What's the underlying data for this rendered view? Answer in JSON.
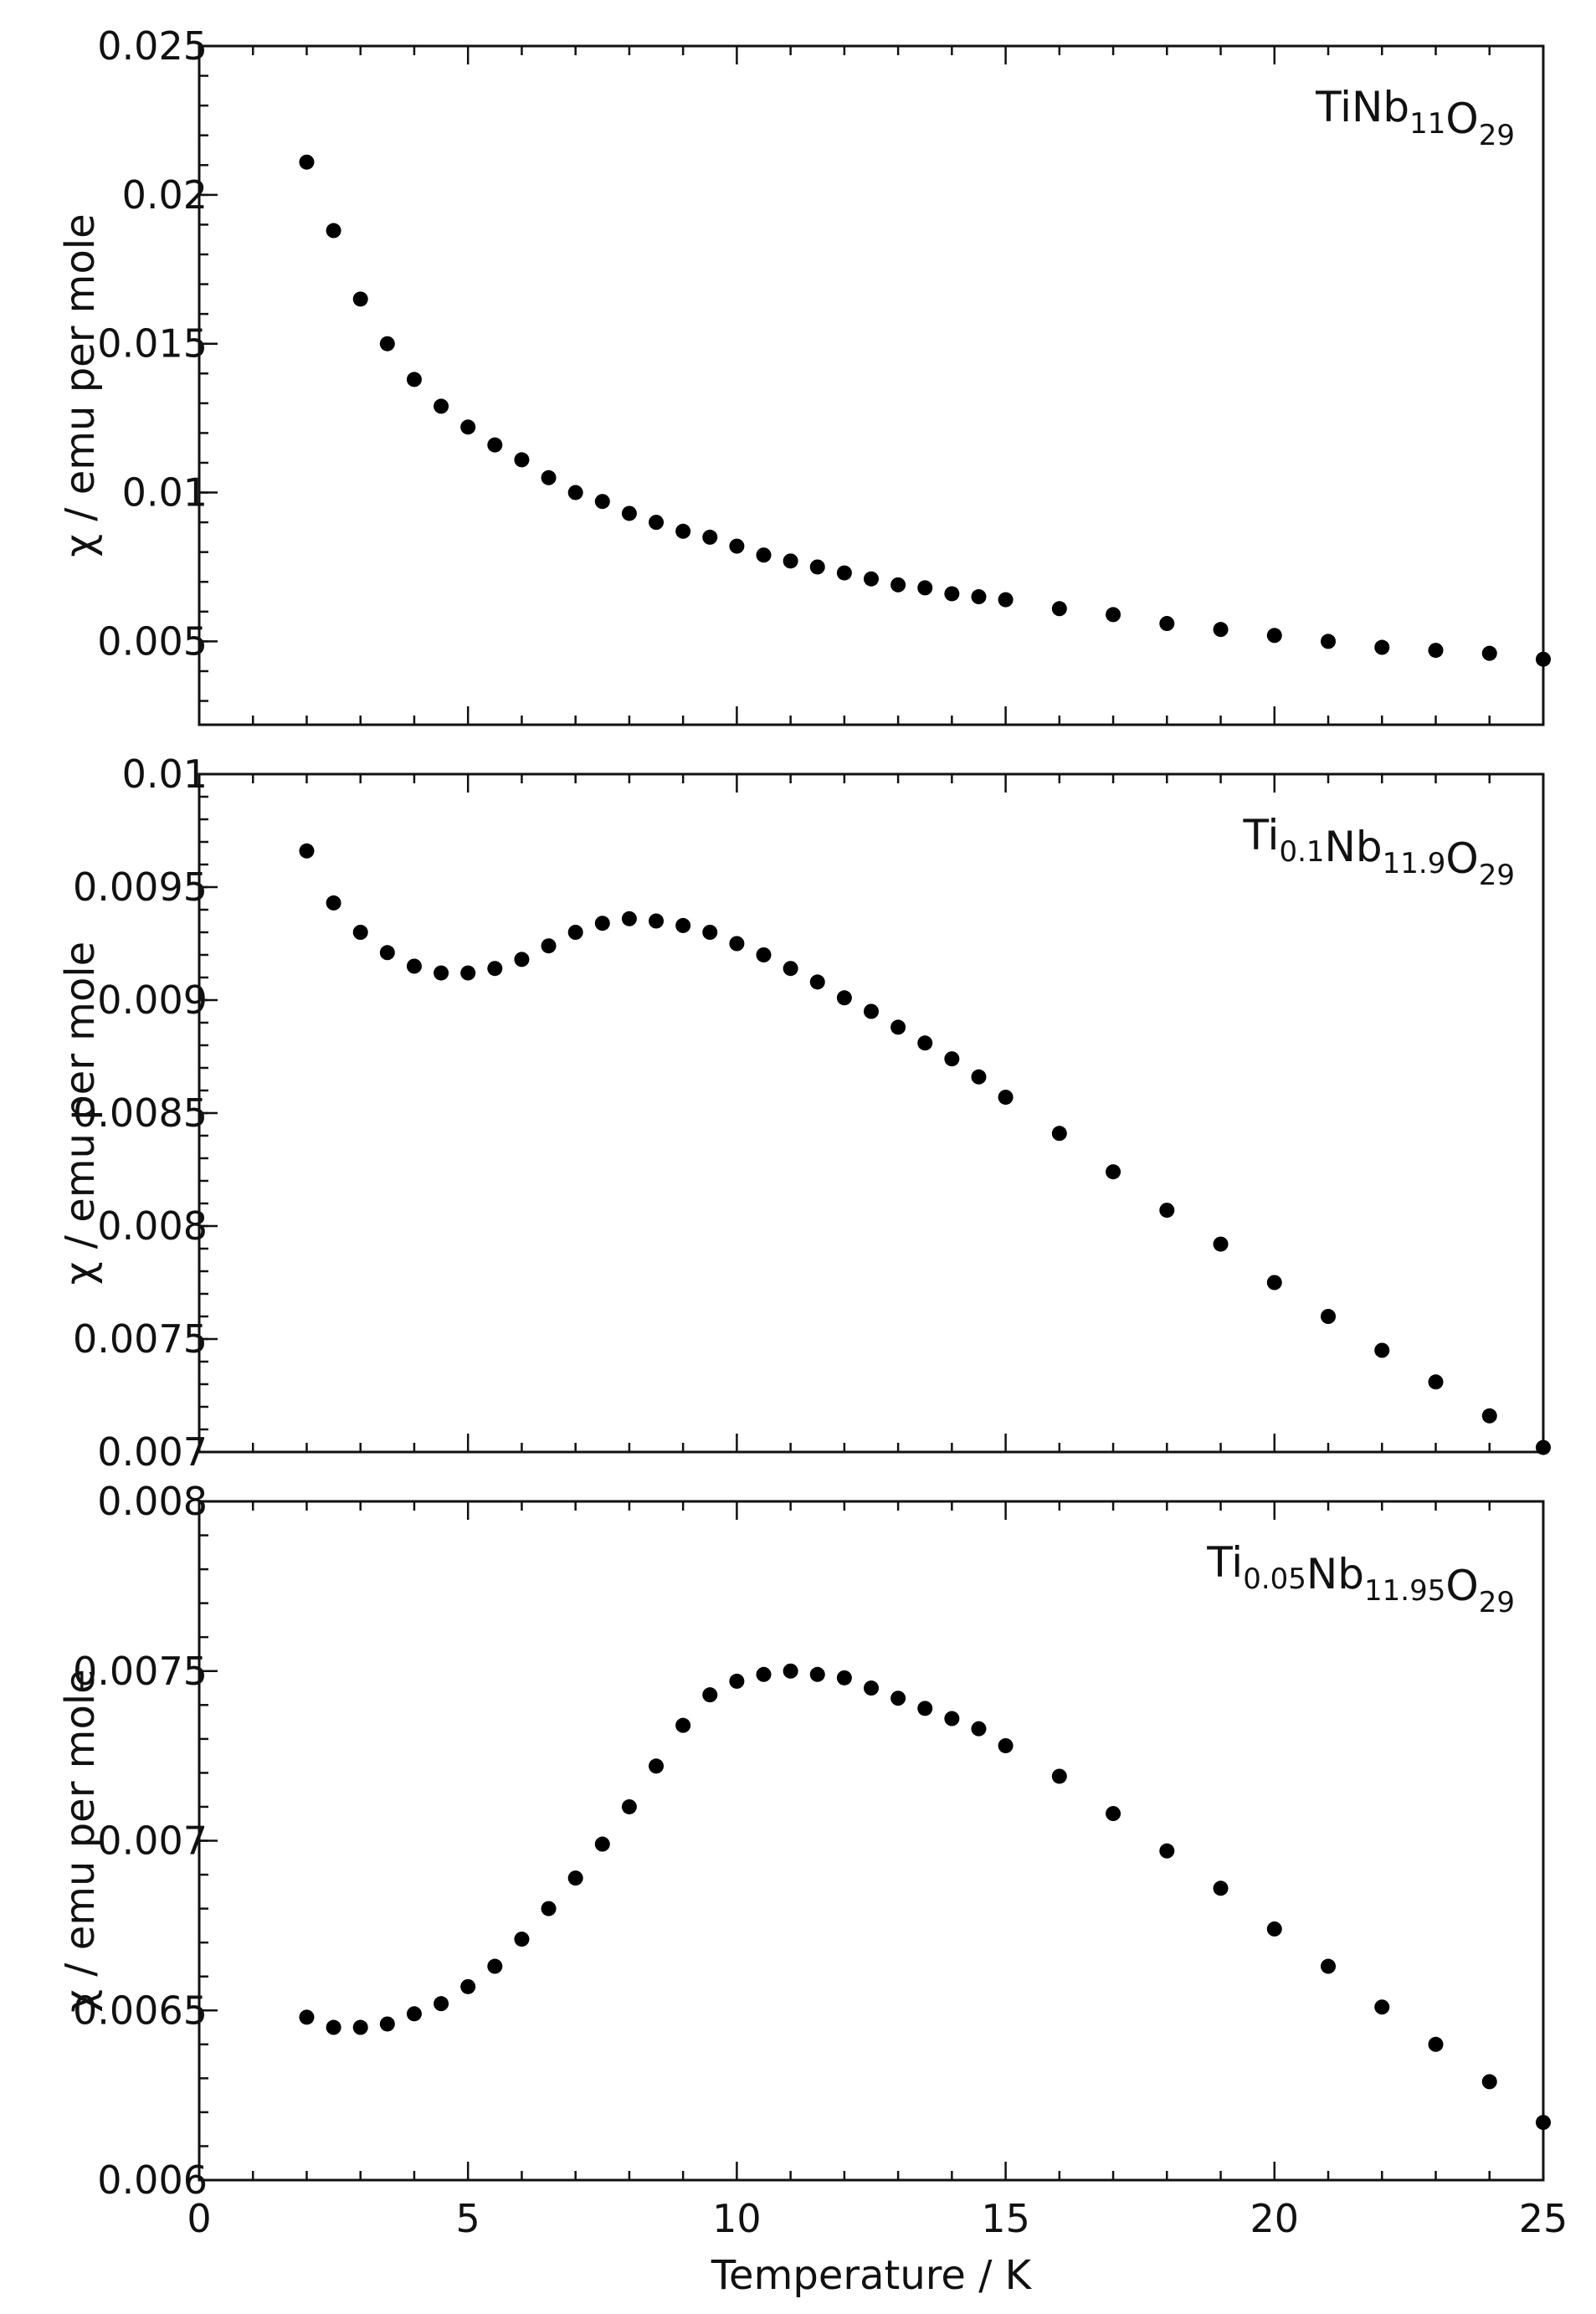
{
  "chart_data": [
    {
      "type": "scatter",
      "title": "",
      "legend": {
        "base": "TiNb",
        "parts": [
          {
            "text": "TiNb",
            "sub": "11"
          },
          {
            "text": "O",
            "sub": "29"
          }
        ],
        "placement": "top-right"
      },
      "xlabel": "",
      "ylabel": "χ / emu per mole",
      "xlim": [
        0,
        25
      ],
      "ylim": [
        0.0022,
        0.025
      ],
      "yticks": [
        0.005,
        0.01,
        0.015,
        0.02,
        0.025
      ],
      "ytick_labels": [
        "0.005",
        "0.01",
        "0.015",
        "0.02",
        "0.025"
      ],
      "x": [
        2,
        2.5,
        3,
        3.5,
        4,
        4.5,
        5,
        5.5,
        6,
        6.5,
        7,
        7.5,
        8,
        8.5,
        9,
        9.5,
        10,
        10.5,
        11,
        11.5,
        12,
        12.5,
        13,
        13.5,
        14,
        14.5,
        15,
        16,
        17,
        18,
        19,
        20,
        21,
        22,
        23,
        24,
        25
      ],
      "y": [
        0.0211,
        0.0188,
        0.0165,
        0.015,
        0.0138,
        0.0129,
        0.0122,
        0.0116,
        0.0111,
        0.0105,
        0.01,
        0.0097,
        0.0093,
        0.009,
        0.0087,
        0.0085,
        0.0082,
        0.0079,
        0.0077,
        0.0075,
        0.0073,
        0.0071,
        0.0069,
        0.0068,
        0.0066,
        0.0065,
        0.0064,
        0.0061,
        0.0059,
        0.0056,
        0.0054,
        0.0052,
        0.005,
        0.0048,
        0.0047,
        0.0046,
        0.0044
      ]
    },
    {
      "type": "scatter",
      "title": "",
      "legend": {
        "parts": [
          {
            "text": "Ti",
            "sub": "0.1"
          },
          {
            "text": "Nb",
            "sub": "11.9"
          },
          {
            "text": "O",
            "sub": "29"
          }
        ],
        "placement": "top-right"
      },
      "xlabel": "",
      "ylabel": "χ / emu per mole",
      "xlim": [
        0,
        25
      ],
      "ylim": [
        0.007,
        0.01
      ],
      "yticks": [
        0.007,
        0.0075,
        0.008,
        0.0085,
        0.009,
        0.0095,
        0.01
      ],
      "ytick_labels": [
        "0.007",
        "0.0075",
        "0.008",
        "0.0085",
        "0.009",
        "0.0095",
        "0.01"
      ],
      "x": [
        2,
        2.5,
        3,
        3.5,
        4,
        4.5,
        5,
        5.5,
        6,
        6.5,
        7,
        7.5,
        8,
        8.5,
        9,
        9.5,
        10,
        10.5,
        11,
        11.5,
        12,
        12.5,
        13,
        13.5,
        14,
        14.5,
        15,
        16,
        17,
        18,
        19,
        20,
        21,
        22,
        23,
        24,
        25
      ],
      "y": [
        0.00966,
        0.00943,
        0.0093,
        0.00921,
        0.00915,
        0.00912,
        0.00912,
        0.00914,
        0.00918,
        0.00924,
        0.0093,
        0.00934,
        0.00936,
        0.00935,
        0.00933,
        0.0093,
        0.00925,
        0.0092,
        0.00914,
        0.00908,
        0.00901,
        0.00895,
        0.00888,
        0.00881,
        0.00874,
        0.00866,
        0.00857,
        0.00841,
        0.00824,
        0.00807,
        0.00792,
        0.00775,
        0.0076,
        0.00745,
        0.00731,
        0.00716,
        0.00702
      ]
    },
    {
      "type": "scatter",
      "title": "",
      "legend": {
        "parts": [
          {
            "text": "Ti",
            "sub": "0.05"
          },
          {
            "text": "Nb",
            "sub": "11.95"
          },
          {
            "text": "O",
            "sub": "29"
          }
        ],
        "placement": "top-right"
      },
      "xlabel": "Temperature  /  K",
      "ylabel": "χ / emu per mole",
      "xlim": [
        0,
        25
      ],
      "ylim": [
        0.006,
        0.008
      ],
      "yticks": [
        0.006,
        0.0065,
        0.007,
        0.0075,
        0.008
      ],
      "ytick_labels": [
        "0.006",
        "0.0065",
        "0.007",
        "0.0075",
        "0.008"
      ],
      "xticks": [
        0,
        5,
        10,
        15,
        20,
        25
      ],
      "xtick_labels": [
        "0",
        "5",
        "10",
        "15",
        "20",
        "25"
      ],
      "x": [
        2,
        2.5,
        3,
        3.5,
        4,
        4.5,
        5,
        5.5,
        6,
        6.5,
        7,
        7.5,
        8,
        8.5,
        9,
        9.5,
        10,
        10.5,
        11,
        11.5,
        12,
        12.5,
        13,
        13.5,
        14,
        14.5,
        15,
        16,
        17,
        18,
        19,
        20,
        21,
        22,
        23,
        24,
        25
      ],
      "y": [
        0.00648,
        0.00645,
        0.00645,
        0.00646,
        0.00649,
        0.00652,
        0.00657,
        0.00663,
        0.00671,
        0.0068,
        0.00689,
        0.00699,
        0.0071,
        0.00722,
        0.00734,
        0.00743,
        0.00747,
        0.00749,
        0.0075,
        0.00749,
        0.00748,
        0.00745,
        0.00742,
        0.00739,
        0.00736,
        0.00733,
        0.00728,
        0.00719,
        0.00708,
        0.00697,
        0.00686,
        0.00674,
        0.00663,
        0.00651,
        0.0064,
        0.00629,
        0.00617
      ]
    }
  ]
}
